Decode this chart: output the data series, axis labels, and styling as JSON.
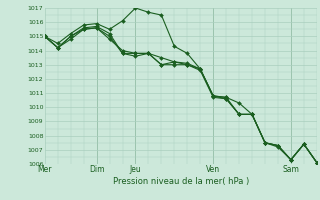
{
  "title": "",
  "xlabel": "Pression niveau de la mer( hPa )",
  "ylim": [
    1006,
    1017
  ],
  "yticks": [
    1006,
    1007,
    1008,
    1009,
    1010,
    1011,
    1012,
    1013,
    1014,
    1015,
    1016,
    1017
  ],
  "day_labels": [
    "Mer",
    "Dim",
    "Jeu",
    "Ven",
    "Sam"
  ],
  "bg_color": "#cce8da",
  "grid_color": "#aacfbe",
  "line_color": "#1a5e20",
  "series": [
    [
      1015.0,
      1014.5,
      1015.2,
      1015.8,
      1015.9,
      1015.5,
      1016.1,
      1017.0,
      1016.7,
      1016.5,
      1014.3,
      1013.8,
      1012.7,
      1010.8,
      1010.7,
      1010.3,
      1009.5,
      1007.5,
      1007.3,
      1006.3,
      1007.4,
      1006.1
    ],
    [
      1015.0,
      1014.2,
      1014.8,
      1015.5,
      1015.6,
      1014.8,
      1014.0,
      1013.8,
      1013.8,
      1013.5,
      1013.2,
      1013.1,
      1012.7,
      1010.8,
      1010.7,
      1009.5,
      1009.5,
      1007.5,
      1007.3,
      1006.3,
      1007.4,
      1006.1
    ],
    [
      1015.0,
      1014.2,
      1015.0,
      1015.5,
      1015.6,
      1015.0,
      1013.8,
      1013.8,
      1013.8,
      1013.0,
      1013.2,
      1013.0,
      1012.7,
      1010.8,
      1010.6,
      1009.5,
      1009.5,
      1007.5,
      1007.3,
      1006.3,
      1007.4,
      1006.1
    ],
    [
      1015.0,
      1014.2,
      1015.0,
      1015.6,
      1015.7,
      1015.2,
      1013.8,
      1013.6,
      1013.8,
      1013.0,
      1013.0,
      1013.0,
      1012.6,
      1010.7,
      1010.6,
      1009.5,
      1009.5,
      1007.5,
      1007.2,
      1006.3,
      1007.4,
      1006.1
    ]
  ],
  "n_points": 22,
  "day_x_positions": [
    0,
    4,
    7,
    13,
    19
  ],
  "vline_x_positions": [
    4,
    7,
    13,
    19
  ]
}
